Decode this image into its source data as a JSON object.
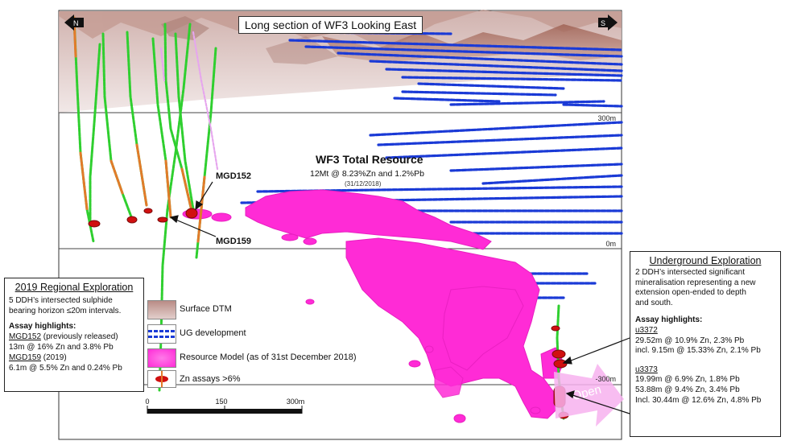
{
  "header": {
    "title": "Long section of WF3 Looking East",
    "north": "N",
    "south": "S"
  },
  "depth_labels": {
    "d300": "300m",
    "d0": "0m",
    "dm300": "-300m"
  },
  "resource": {
    "title": "WF3 Total Resource",
    "subtitle": "12Mt @ 8.23%Zn and 1.2%Pb",
    "date": "(31/12/2018)"
  },
  "holes": {
    "mgd152": "MGD152",
    "mgd159": "MGD159"
  },
  "open_label": "Open",
  "regional": {
    "title": "2019 Regional Exploration",
    "desc1": "5 DDH’s intersected sulphide",
    "desc2": "bearing horizon ≤20m intervals.",
    "assay_title": "Assay highlights:",
    "h1_name": "MGD152",
    "h1_note": " (previously released)",
    "h1_result": "13m @ 16% Zn and 3.8% Pb",
    "h2_name": "MGD159",
    "h2_note": " (2019)",
    "h2_result": "6.1m @ 5.5% Zn and 0.24% Pb"
  },
  "legend": {
    "items": [
      "Surface DTM",
      "UG development",
      "Resource Model (as of 31st December 2018)",
      "Zn assays >6%"
    ],
    "colors": {
      "dtm": "#b98c86",
      "ug": "#1a3ad6",
      "resource": "#ff2bd6",
      "zn": "#d01010"
    }
  },
  "scale": {
    "t0": "0",
    "t150": "150",
    "t300": "300m"
  },
  "underground": {
    "title": "Underground Exploration",
    "desc": [
      "2 DDH’s intersected significant",
      "mineralisation representing a new",
      "extension open-ended to depth",
      "and south."
    ],
    "assay_title": "Assay highlights:",
    "u3372": {
      "name": "u3372",
      "lines": [
        "29.52m @ 10.9% Zn, 2.3% Pb",
        "incl. 9.15m @ 15.33% Zn, 2.1% Pb"
      ]
    },
    "u3373": {
      "name": "u3373",
      "lines": [
        "19.99m @ 6.9% Zn, 1.8% Pb",
        "53.88m @ 9.4% Zn, 3.4% Pb",
        "Incl. 30.44m @ 12.6% Zn, 4.8% Pb"
      ]
    }
  }
}
